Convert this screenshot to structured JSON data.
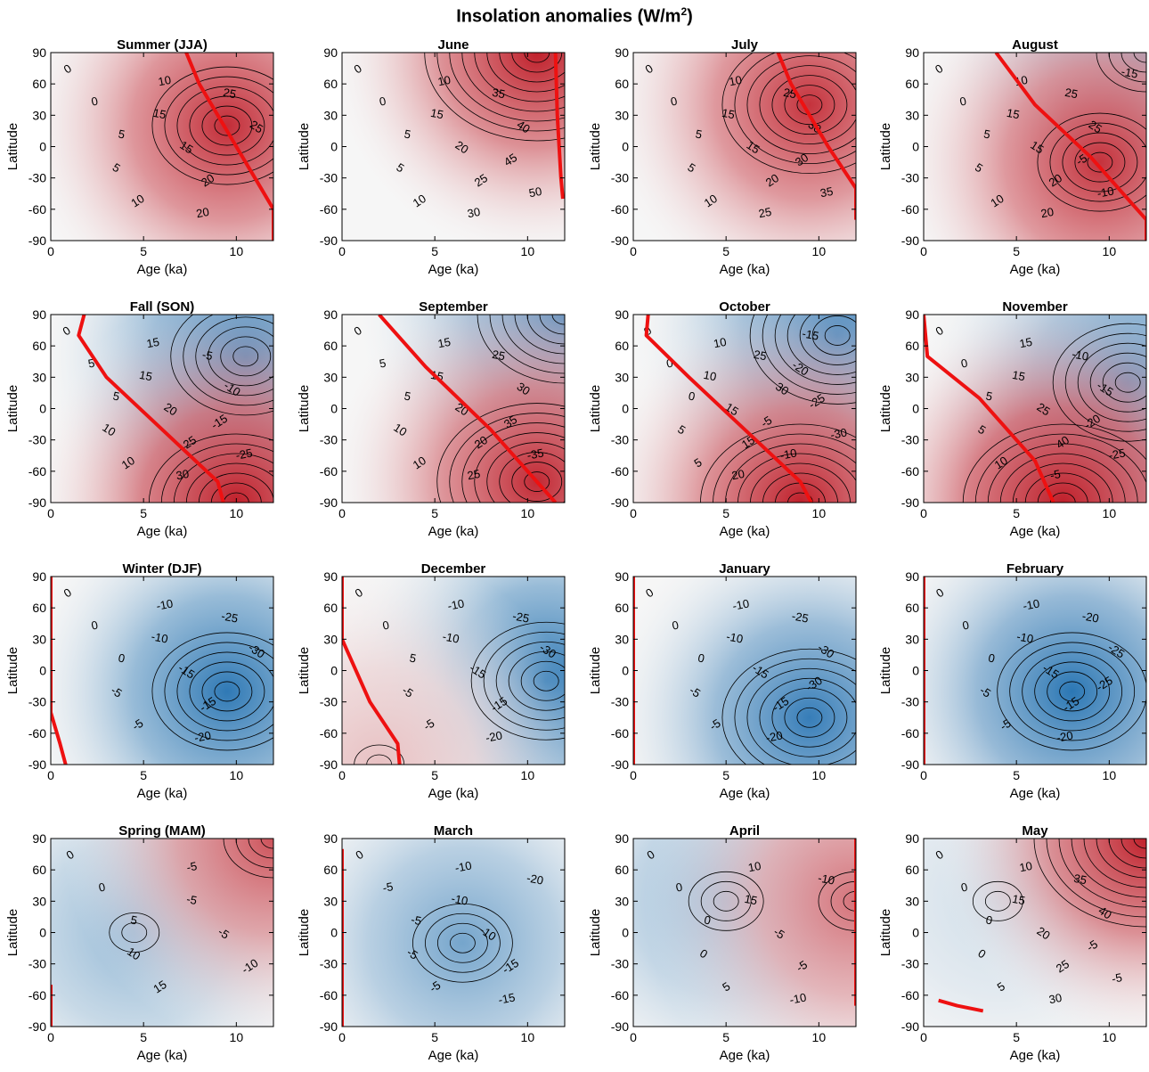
{
  "figure": {
    "title_main": "Insolation anomalies (W/m",
    "title_sup": "2",
    "title_close": ")"
  },
  "colors": {
    "warm_max": "#c0202b",
    "cold_max": "#1f6fb0",
    "neutral": "#f6f6f6",
    "contour": "#000000",
    "max_line": "#ee1111"
  },
  "chart_data": [
    {
      "type": "heatmap",
      "title": "Summer (JJA)",
      "xlabel": "Age (ka)",
      "ylabel": "Latitude",
      "xlim": [
        0,
        12
      ],
      "ylim": [
        -90,
        90
      ],
      "xticks": [
        0,
        5,
        10
      ],
      "yticks": [
        -90,
        -60,
        -30,
        0,
        30,
        60,
        90
      ],
      "zrange": [
        -30,
        30
      ],
      "grid": false,
      "peak": {
        "x": 9.5,
        "y": 20,
        "v": 28
      },
      "trough": {
        "x": 0,
        "y": -60,
        "v": -1
      },
      "contour_labels": [
        "0",
        "0",
        "5",
        "5",
        "10",
        "10",
        "15",
        "15",
        "20",
        "20",
        "25",
        "25"
      ],
      "max_line": [
        [
          7.3,
          90
        ],
        [
          8,
          60
        ],
        [
          9,
          30
        ],
        [
          10,
          0
        ],
        [
          11,
          -30
        ],
        [
          12,
          -60
        ],
        [
          12,
          -90
        ]
      ]
    },
    {
      "type": "heatmap",
      "title": "June",
      "xlabel": "Age (ka)",
      "ylabel": "Latitude",
      "xlim": [
        0,
        12
      ],
      "ylim": [
        -90,
        90
      ],
      "xticks": [
        0,
        5,
        10
      ],
      "yticks": [
        -90,
        -60,
        -30,
        0,
        30,
        60,
        90
      ],
      "zrange": [
        -50,
        50
      ],
      "grid": false,
      "peak": {
        "x": 10.5,
        "y": 90,
        "v": 50
      },
      "trough": {
        "x": 0,
        "y": -80,
        "v": -1
      },
      "contour_labels": [
        "0",
        "0",
        "5",
        "5",
        "10",
        "10",
        "15",
        "20",
        "25",
        "30",
        "35",
        "40",
        "45",
        "50"
      ],
      "max_line": [
        [
          11.5,
          90
        ],
        [
          11.6,
          30
        ],
        [
          11.8,
          -30
        ],
        [
          11.9,
          -50
        ]
      ]
    },
    {
      "type": "heatmap",
      "title": "July",
      "xlabel": "Age (ka)",
      "ylabel": "Latitude",
      "xlim": [
        0,
        12
      ],
      "ylim": [
        -90,
        90
      ],
      "xticks": [
        0,
        5,
        10
      ],
      "yticks": [
        -90,
        -60,
        -30,
        0,
        30,
        60,
        90
      ],
      "zrange": [
        -40,
        40
      ],
      "grid": false,
      "peak": {
        "x": 9.5,
        "y": 40,
        "v": 36
      },
      "trough": {
        "x": 0,
        "y": -80,
        "v": -1
      },
      "contour_labels": [
        "0",
        "0",
        "5",
        "5",
        "10",
        "10",
        "15",
        "15",
        "20",
        "25",
        "25",
        "30",
        "30",
        "35"
      ],
      "max_line": [
        [
          7.8,
          90
        ],
        [
          8.5,
          60
        ],
        [
          9.5,
          30
        ],
        [
          10.5,
          0
        ],
        [
          12,
          -40
        ],
        [
          12,
          -70
        ]
      ]
    },
    {
      "type": "heatmap",
      "title": "August",
      "xlabel": "Age (ka)",
      "ylabel": "Latitude",
      "xlim": [
        0,
        12
      ],
      "ylim": [
        -90,
        90
      ],
      "xticks": [
        0,
        5,
        10
      ],
      "yticks": [
        -90,
        -60,
        -30,
        0,
        30,
        60,
        90
      ],
      "zrange": [
        -30,
        30
      ],
      "grid": false,
      "peak": {
        "x": 9.5,
        "y": -15,
        "v": 27
      },
      "trough": {
        "x": 12,
        "y": 90,
        "v": -20
      },
      "contour_labels": [
        "0",
        "0",
        "5",
        "5",
        "10",
        "10",
        "15",
        "15",
        "20",
        "20",
        "25",
        "25",
        "-5",
        "-10",
        "-15"
      ],
      "max_line": [
        [
          3.9,
          90
        ],
        [
          6,
          40
        ],
        [
          9,
          -10
        ],
        [
          12,
          -70
        ],
        [
          12,
          -90
        ]
      ]
    },
    {
      "type": "heatmap",
      "title": "Fall (SON)",
      "xlabel": "Age (ka)",
      "ylabel": "Latitude",
      "xlim": [
        0,
        12
      ],
      "ylim": [
        -90,
        90
      ],
      "xticks": [
        0,
        5,
        10
      ],
      "yticks": [
        -90,
        -60,
        -30,
        0,
        30,
        60,
        90
      ],
      "zrange": [
        -30,
        30
      ],
      "grid": false,
      "peak": {
        "x": 10,
        "y": -90,
        "v": 34
      },
      "trough": {
        "x": 10.5,
        "y": 50,
        "v": -28
      },
      "contour_labels": [
        "0",
        "5",
        "5",
        "10",
        "10",
        "15",
        "15",
        "20",
        "25",
        "30",
        "-5",
        "-10",
        "-15",
        "-25"
      ],
      "max_line": [
        [
          1.8,
          90
        ],
        [
          1.5,
          70
        ],
        [
          3,
          30
        ],
        [
          6,
          -20
        ],
        [
          9,
          -70
        ],
        [
          9.3,
          -90
        ]
      ]
    },
    {
      "type": "heatmap",
      "title": "September",
      "xlabel": "Age (ka)",
      "ylabel": "Latitude",
      "xlim": [
        0,
        12
      ],
      "ylim": [
        -90,
        90
      ],
      "xticks": [
        0,
        5,
        10
      ],
      "yticks": [
        -90,
        -60,
        -30,
        0,
        30,
        60,
        90
      ],
      "zrange": [
        -40,
        40
      ],
      "grid": false,
      "peak": {
        "x": 10.5,
        "y": -70,
        "v": 38
      },
      "trough": {
        "x": 12,
        "y": 90,
        "v": -35
      },
      "contour_labels": [
        "0",
        "5",
        "5",
        "10",
        "10",
        "15",
        "15",
        "20",
        "20",
        "25",
        "25",
        "30",
        "35",
        "-35"
      ],
      "max_line": [
        [
          2,
          90
        ],
        [
          4.5,
          40
        ],
        [
          8,
          -20
        ],
        [
          10.5,
          -70
        ],
        [
          11.5,
          -90
        ]
      ]
    },
    {
      "type": "heatmap",
      "title": "October",
      "xlabel": "Age (ka)",
      "ylabel": "Latitude",
      "xlim": [
        0,
        12
      ],
      "ylim": [
        -90,
        90
      ],
      "xticks": [
        0,
        5,
        10
      ],
      "yticks": [
        -90,
        -60,
        -30,
        0,
        30,
        60,
        90
      ],
      "zrange": [
        -40,
        40
      ],
      "grid": false,
      "peak": {
        "x": 9,
        "y": -90,
        "v": 40
      },
      "trough": {
        "x": 11,
        "y": 70,
        "v": -35
      },
      "contour_labels": [
        "0",
        "0",
        "0",
        "5",
        "5",
        "10",
        "10",
        "15",
        "15",
        "20",
        "25",
        "30",
        "-5",
        "-10",
        "-15",
        "-20",
        "-25",
        "-30"
      ],
      "max_line": [
        [
          0.8,
          90
        ],
        [
          0.7,
          70
        ],
        [
          3,
          30
        ],
        [
          6,
          -20
        ],
        [
          9,
          -70
        ],
        [
          9.6,
          -90
        ]
      ]
    },
    {
      "type": "heatmap",
      "title": "November",
      "xlabel": "Age (ka)",
      "ylabel": "Latitude",
      "xlim": [
        0,
        12
      ],
      "ylim": [
        -90,
        90
      ],
      "xticks": [
        0,
        5,
        10
      ],
      "yticks": [
        -90,
        -60,
        -30,
        0,
        30,
        60,
        90
      ],
      "zrange": [
        -35,
        35
      ],
      "grid": false,
      "peak": {
        "x": 7.5,
        "y": -90,
        "v": 42
      },
      "trough": {
        "x": 11,
        "y": 25,
        "v": -28
      },
      "contour_labels": [
        "0",
        "0",
        "5",
        "5",
        "10",
        "15",
        "15",
        "25",
        "40",
        "-5",
        "-10",
        "-15",
        "-20",
        "-25"
      ],
      "max_line": [
        [
          0,
          90
        ],
        [
          0.2,
          50
        ],
        [
          3,
          10
        ],
        [
          6,
          -50
        ],
        [
          7,
          -90
        ]
      ]
    },
    {
      "type": "heatmap",
      "title": "Winter (DJF)",
      "xlabel": "Age (ka)",
      "ylabel": "Latitude",
      "xlim": [
        0,
        12
      ],
      "ylim": [
        -90,
        90
      ],
      "xticks": [
        0,
        5,
        10
      ],
      "yticks": [
        -90,
        -60,
        -30,
        0,
        30,
        60,
        90
      ],
      "zrange": [
        -35,
        35
      ],
      "grid": false,
      "peak": {
        "x": 0.5,
        "y": -80,
        "v": 1
      },
      "trough": {
        "x": 9.5,
        "y": -20,
        "v": -32
      },
      "contour_labels": [
        "0",
        "0",
        "0",
        "-5",
        "-5",
        "-10",
        "-10",
        "-15",
        "-15",
        "-20",
        "-25",
        "-30"
      ],
      "max_line": [
        [
          0,
          90
        ],
        [
          0,
          -40
        ],
        [
          0.5,
          -70
        ],
        [
          0.8,
          -90
        ]
      ]
    },
    {
      "type": "heatmap",
      "title": "December",
      "xlabel": "Age (ka)",
      "ylabel": "Latitude",
      "xlim": [
        0,
        12
      ],
      "ylim": [
        -90,
        90
      ],
      "xticks": [
        0,
        5,
        10
      ],
      "yticks": [
        -90,
        -60,
        -30,
        0,
        30,
        60,
        90
      ],
      "zrange": [
        -35,
        35
      ],
      "grid": false,
      "peak": {
        "x": 2,
        "y": -90,
        "v": 7
      },
      "trough": {
        "x": 11,
        "y": -10,
        "v": -32
      },
      "contour_labels": [
        "0",
        "0",
        "5",
        "-5",
        "-5",
        "-10",
        "-10",
        "-15",
        "-15",
        "-20",
        "-25",
        "-30"
      ],
      "max_line": [
        [
          0,
          90
        ],
        [
          0,
          30
        ],
        [
          1.5,
          -30
        ],
        [
          3,
          -70
        ],
        [
          3.1,
          -90
        ]
      ]
    },
    {
      "type": "heatmap",
      "title": "January",
      "xlabel": "Age (ka)",
      "ylabel": "Latitude",
      "xlim": [
        0,
        12
      ],
      "ylim": [
        -90,
        90
      ],
      "xticks": [
        0,
        5,
        10
      ],
      "yticks": [
        -90,
        -60,
        -30,
        0,
        30,
        60,
        90
      ],
      "zrange": [
        -40,
        40
      ],
      "grid": false,
      "peak": {
        "x": 0,
        "y": -90,
        "v": 1
      },
      "trough": {
        "x": 9.5,
        "y": -45,
        "v": -35
      },
      "contour_labels": [
        "0",
        "0",
        "0",
        "-5",
        "-5",
        "-10",
        "-10",
        "-15",
        "-15",
        "-20",
        "-25",
        "-30",
        "-30"
      ],
      "max_line": [
        [
          0,
          90
        ],
        [
          0,
          -90
        ]
      ]
    },
    {
      "type": "heatmap",
      "title": "February",
      "xlabel": "Age (ka)",
      "ylabel": "Latitude",
      "xlim": [
        0,
        12
      ],
      "ylim": [
        -90,
        90
      ],
      "xticks": [
        0,
        5,
        10
      ],
      "yticks": [
        -90,
        -60,
        -30,
        0,
        30,
        60,
        90
      ],
      "zrange": [
        -30,
        30
      ],
      "grid": false,
      "peak": {
        "x": 0,
        "y": -90,
        "v": 1
      },
      "trough": {
        "x": 8,
        "y": -20,
        "v": -28
      },
      "contour_labels": [
        "0",
        "0",
        "0",
        "-5",
        "-5",
        "-10",
        "-10",
        "-15",
        "-15",
        "-20",
        "-20",
        "-25",
        "-25"
      ],
      "max_line": [
        [
          0,
          90
        ],
        [
          0,
          -90
        ]
      ]
    },
    {
      "type": "heatmap",
      "title": "Spring (MAM)",
      "xlabel": "Age (ka)",
      "ylabel": "Latitude",
      "xlim": [
        0,
        12
      ],
      "ylim": [
        -90,
        90
      ],
      "xticks": [
        0,
        5,
        10
      ],
      "yticks": [
        -90,
        -60,
        -30,
        0,
        30,
        60,
        90
      ],
      "zrange": [
        -30,
        30
      ],
      "grid": false,
      "peak": {
        "x": 12,
        "y": 90,
        "v": 22
      },
      "trough": {
        "x": 4.5,
        "y": 0,
        "v": -12
      },
      "contour_labels": [
        "0",
        "0",
        "5",
        "10",
        "15",
        "-5",
        "-5",
        "-5",
        "-10"
      ],
      "max_line": [
        [
          0,
          -50
        ],
        [
          0,
          -90
        ]
      ]
    },
    {
      "type": "heatmap",
      "title": "March",
      "xlabel": "Age (ka)",
      "ylabel": "Latitude",
      "xlim": [
        0,
        12
      ],
      "ylim": [
        -90,
        90
      ],
      "xticks": [
        0,
        5,
        10
      ],
      "yticks": [
        -90,
        -60,
        -30,
        0,
        30,
        60,
        90
      ],
      "zrange": [
        -40,
        40
      ],
      "grid": false,
      "peak": {
        "x": 12,
        "y": 90,
        "v": 1
      },
      "trough": {
        "x": 6.5,
        "y": -10,
        "v": -22
      },
      "contour_labels": [
        "0",
        "-5",
        "-5",
        "-5",
        "-5",
        "-10",
        "-10",
        "-10",
        "-15",
        "-15",
        "-20"
      ],
      "max_line": [
        [
          0,
          80
        ],
        [
          0,
          -90
        ]
      ]
    },
    {
      "type": "heatmap",
      "title": "April",
      "xlabel": "Age (ka)",
      "ylabel": "Latitude",
      "xlim": [
        0,
        12
      ],
      "ylim": [
        -90,
        90
      ],
      "xticks": [
        0,
        5,
        10
      ],
      "yticks": [
        -90,
        -60,
        -30,
        0,
        30,
        60,
        90
      ],
      "zrange": [
        -30,
        30
      ],
      "grid": false,
      "peak": {
        "x": 12,
        "y": 30,
        "v": 17
      },
      "trough": {
        "x": 5,
        "y": 30,
        "v": -13
      },
      "contour_labels": [
        "0",
        "0",
        "0",
        "0",
        "5",
        "10",
        "15",
        "-5",
        "-5",
        "-10",
        "-10"
      ],
      "max_line": [
        [
          12,
          90
        ],
        [
          12,
          -70
        ]
      ]
    },
    {
      "type": "heatmap",
      "title": "May",
      "xlabel": "Age (ka)",
      "ylabel": "Latitude",
      "xlim": [
        0,
        12
      ],
      "ylim": [
        -90,
        90
      ],
      "xticks": [
        0,
        5,
        10
      ],
      "yticks": [
        -90,
        -60,
        -30,
        0,
        30,
        60,
        90
      ],
      "zrange": [
        -45,
        45
      ],
      "grid": false,
      "peak": {
        "x": 12,
        "y": 90,
        "v": 45
      },
      "trough": {
        "x": 4,
        "y": 30,
        "v": -6
      },
      "contour_labels": [
        "0",
        "0",
        "0",
        "0",
        "5",
        "10",
        "15",
        "20",
        "25",
        "30",
        "35",
        "40",
        "-5",
        "-5"
      ],
      "max_line": [
        [
          0.8,
          -65
        ],
        [
          1.8,
          -70
        ],
        [
          3.2,
          -75
        ]
      ]
    }
  ]
}
